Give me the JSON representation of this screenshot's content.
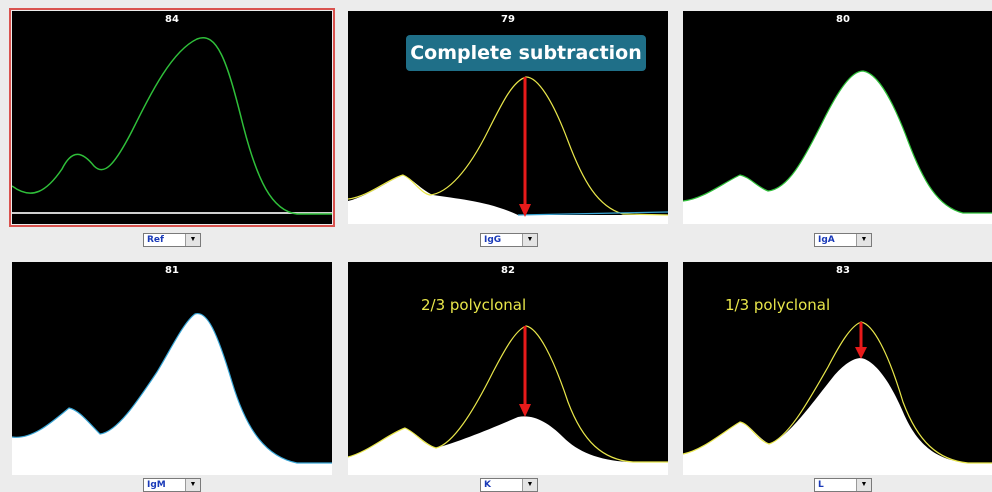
{
  "panels": [
    {
      "id": "ref",
      "number": "84",
      "selector": "Ref",
      "selected": true,
      "fill": "none",
      "line_colors": [
        "#2fbf3a"
      ]
    },
    {
      "id": "igg",
      "number": "79",
      "selector": "IgG",
      "selected": false,
      "fill": "igg",
      "line_colors": [
        "#e8e64a"
      ]
    },
    {
      "id": "iga",
      "number": "80",
      "selector": "IgA",
      "selected": false,
      "fill": "full",
      "line_colors": [
        "#2fbf3a"
      ]
    },
    {
      "id": "igm",
      "number": "81",
      "selector": "IgM",
      "selected": false,
      "fill": "full",
      "line_colors": [
        "#3aa6d6"
      ]
    },
    {
      "id": "k",
      "number": "82",
      "selector": "K",
      "selected": false,
      "fill": "twothirds",
      "line_colors": [
        "#e8e64a"
      ]
    },
    {
      "id": "l",
      "number": "83",
      "selector": "L",
      "selected": false,
      "fill": "onethird",
      "line_colors": [
        "#e8e64a"
      ]
    }
  ],
  "annotations": {
    "callout": "Complete subtraction",
    "k_label": "2/3 polyclonal",
    "l_label": "1/3  polyclonal"
  },
  "colors": {
    "callout_bg": "#1f6f88",
    "arrow": "#e81a1a",
    "annotation_text": "#e8e64a",
    "selected_border": "#d9534f",
    "selector_text": "#1a3ab8"
  },
  "icons": {
    "dropdown": "chevron-down-icon",
    "arrow": "arrow-down-icon"
  }
}
